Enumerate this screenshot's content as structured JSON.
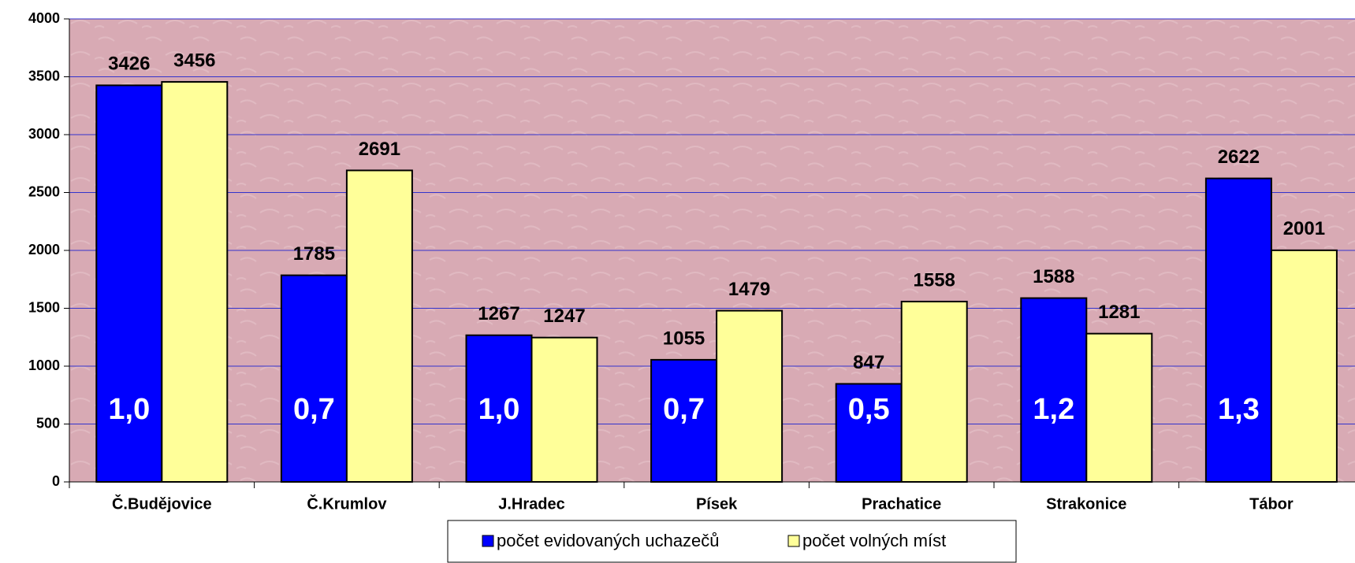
{
  "chart_data": {
    "type": "bar",
    "categories": [
      "Č.Budějovice",
      "Č.Krumlov",
      "J.Hradec",
      "Písek",
      "Prachatice",
      "Strakonice",
      "Tábor"
    ],
    "series": [
      {
        "name": "počet evidovaných uchazečů",
        "color": "#0000ff",
        "values": [
          3426,
          1785,
          1267,
          1055,
          847,
          1588,
          2622
        ]
      },
      {
        "name": "počet volných míst",
        "color": "#ffff99",
        "values": [
          3456,
          2691,
          1247,
          1479,
          1558,
          1281,
          2001
        ]
      }
    ],
    "annotations": [
      "1,0",
      "0,7",
      "1,0",
      "0,7",
      "0,5",
      "1,2",
      "1,3"
    ],
    "ylim": [
      0,
      4000
    ],
    "yticks": [
      0,
      500,
      1000,
      1500,
      2000,
      2500,
      3000,
      3500,
      4000
    ],
    "grid": true,
    "grid_color": "#3333cc",
    "background": "#d8aab4",
    "legend": "bottom"
  }
}
